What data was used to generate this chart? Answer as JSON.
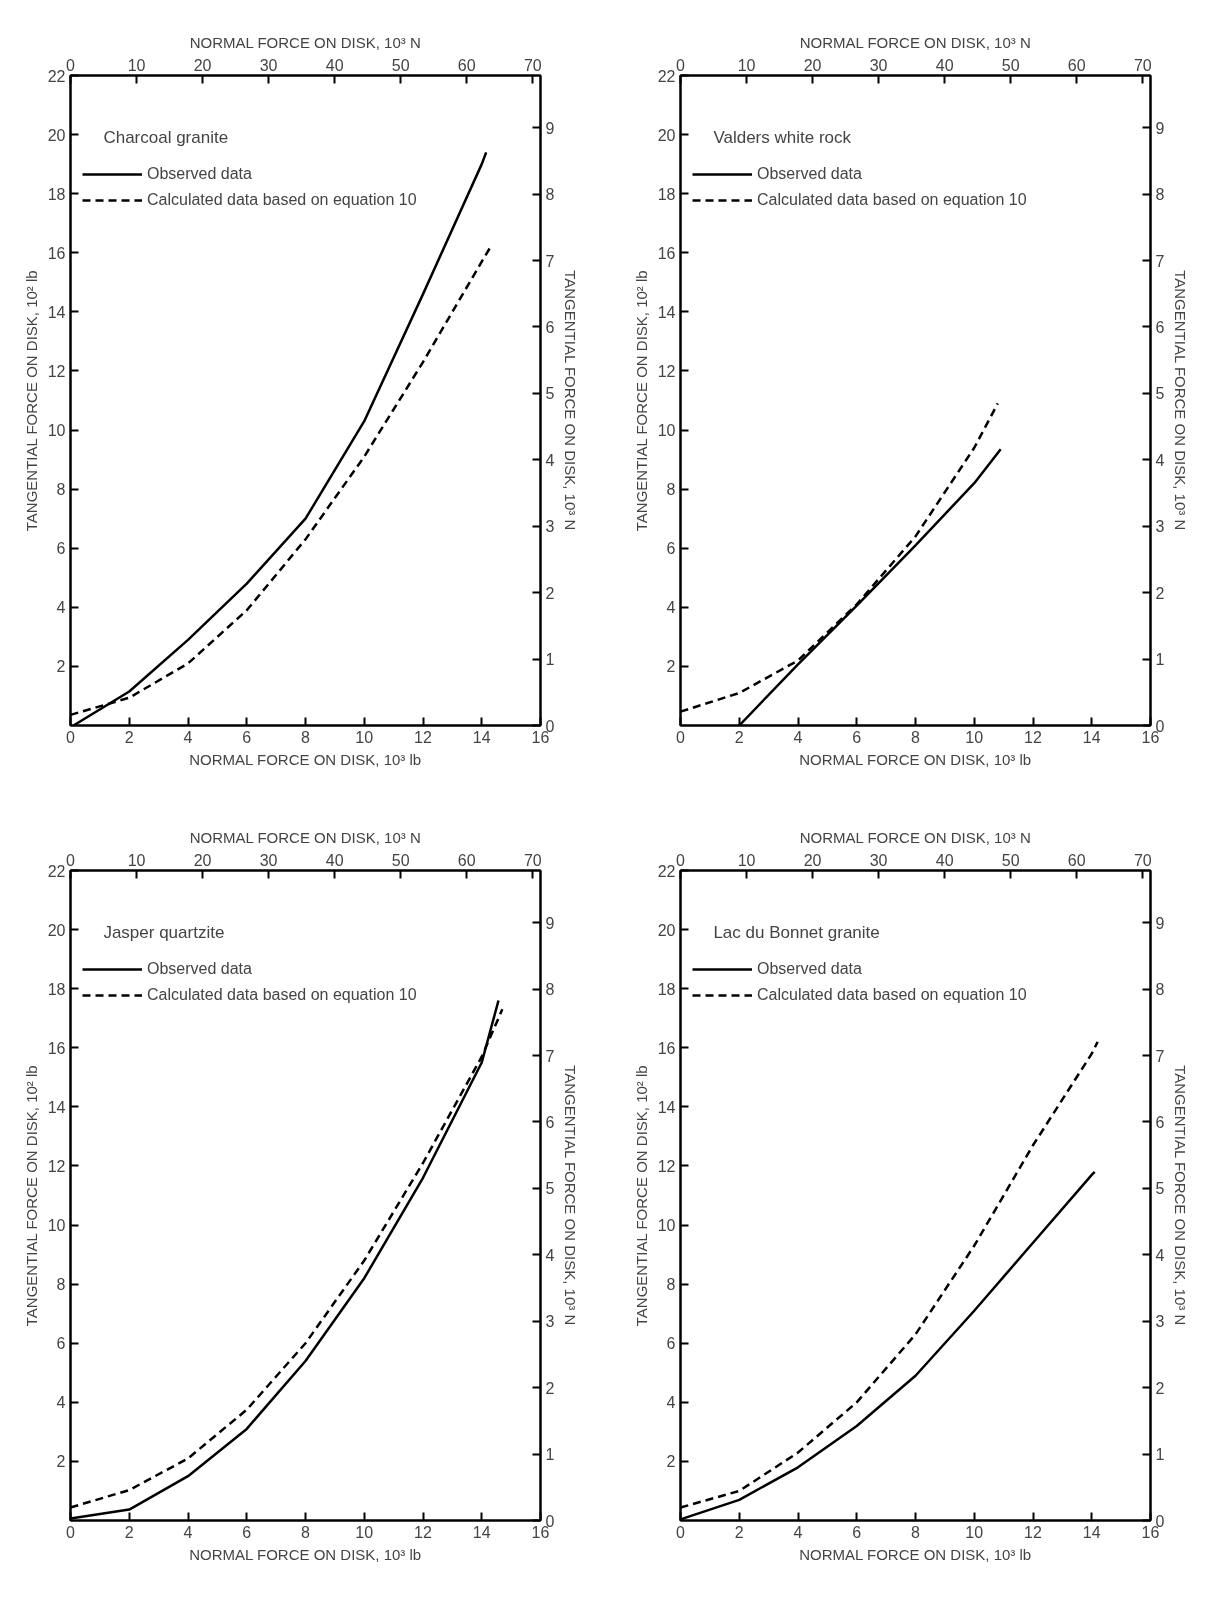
{
  "chart_data": [
    {
      "type": "line",
      "title": "Charcoal granite",
      "xlabel": "NORMAL FORCE ON DISK, 10³ lb",
      "x2label": "NORMAL FORCE ON DISK, 10³ N",
      "ylabel": "TANGENTIAL FORCE ON DISK, 10² lb",
      "y2label": "TANGENTIAL FORCE ON DISK, 10³ N",
      "xlim": [
        0,
        16
      ],
      "xticks": [
        0,
        2,
        4,
        6,
        8,
        10,
        12,
        14,
        16
      ],
      "x2lim": [
        0,
        71.17
      ],
      "x2ticks": [
        0,
        10,
        20,
        30,
        40,
        50,
        60,
        70
      ],
      "ylim": [
        0,
        22
      ],
      "yticks": [
        2,
        4,
        6,
        8,
        10,
        12,
        14,
        16,
        18,
        20,
        22
      ],
      "y2lim": [
        0,
        9.786
      ],
      "y2ticks": [
        0,
        1,
        2,
        3,
        4,
        5,
        6,
        7,
        8,
        9
      ],
      "legend": "top left",
      "series": [
        {
          "name": "Observed data",
          "color": "#000000",
          "line_style": "solid",
          "x": [
            0.1,
            2,
            4,
            6,
            8,
            10,
            12,
            14,
            14.15
          ],
          "values": [
            0,
            1.15,
            2.9,
            4.8,
            7.0,
            10.3,
            14.6,
            19.0,
            19.4
          ]
        },
        {
          "name": "Calculated data based on equation 10",
          "color": "#000000",
          "line_style": "dashed",
          "x": [
            0,
            2,
            4,
            6,
            8,
            10,
            12,
            14,
            14.3
          ],
          "values": [
            0.36,
            0.94,
            2.1,
            3.9,
            6.3,
            9.1,
            12.3,
            15.7,
            16.2
          ]
        }
      ]
    },
    {
      "type": "line",
      "title": "Valders white rock",
      "xlabel": "NORMAL FORCE ON DISK, 10³ lb",
      "x2label": "NORMAL FORCE ON DISK, 10³ N",
      "ylabel": "TANGENTIAL FORCE ON DISK, 10² lb",
      "y2label": "TANGENTIAL FORCE ON DISK, 10³ N",
      "xlim": [
        0,
        16
      ],
      "xticks": [
        0,
        2,
        4,
        6,
        8,
        10,
        12,
        14,
        16
      ],
      "x2lim": [
        0,
        71.17
      ],
      "x2ticks": [
        0,
        10,
        20,
        30,
        40,
        50,
        60,
        70
      ],
      "ylim": [
        0,
        22
      ],
      "yticks": [
        2,
        4,
        6,
        8,
        10,
        12,
        14,
        16,
        18,
        20,
        22
      ],
      "y2lim": [
        0,
        9.786
      ],
      "y2ticks": [
        0,
        1,
        2,
        3,
        4,
        5,
        6,
        7,
        8,
        9
      ],
      "legend": "top left",
      "series": [
        {
          "name": "Observed data",
          "color": "#000000",
          "line_style": "solid",
          "x": [
            2.0,
            4,
            6,
            8,
            10,
            10.9
          ],
          "values": [
            0,
            2.07,
            4.06,
            6.1,
            8.2,
            9.35
          ]
        },
        {
          "name": "Calculated data based on equation 10",
          "color": "#000000",
          "line_style": "dashed",
          "x": [
            0,
            2,
            4,
            6,
            8,
            10,
            10.8
          ],
          "values": [
            0.47,
            1.1,
            2.2,
            4.1,
            6.4,
            9.4,
            10.9
          ]
        }
      ]
    },
    {
      "type": "line",
      "title": "Jasper quartzite",
      "xlabel": "NORMAL FORCE ON DISK, 10³ lb",
      "x2label": "NORMAL FORCE ON DISK, 10³ N",
      "ylabel": "TANGENTIAL FORCE ON DISK, 10² lb",
      "y2label": "TANGENTIAL FORCE ON DISK, 10³ N",
      "xlim": [
        0,
        16
      ],
      "xticks": [
        0,
        2,
        4,
        6,
        8,
        10,
        12,
        14,
        16
      ],
      "x2lim": [
        0,
        71.17
      ],
      "x2ticks": [
        0,
        10,
        20,
        30,
        40,
        50,
        60,
        70
      ],
      "ylim": [
        0,
        22
      ],
      "yticks": [
        2,
        4,
        6,
        8,
        10,
        12,
        14,
        16,
        18,
        20,
        22
      ],
      "y2lim": [
        0,
        9.786
      ],
      "y2ticks": [
        0,
        1,
        2,
        3,
        4,
        5,
        6,
        7,
        8,
        9
      ],
      "legend": "top left",
      "series": [
        {
          "name": "Observed data",
          "color": "#000000",
          "line_style": "solid",
          "x": [
            0,
            2,
            4,
            6,
            8,
            10,
            12,
            14,
            14.57
          ],
          "values": [
            0.07,
            0.37,
            1.5,
            3.1,
            5.4,
            8.2,
            11.6,
            15.5,
            17.6
          ]
        },
        {
          "name": "Calculated data based on equation 10",
          "color": "#000000",
          "line_style": "dashed",
          "x": [
            0,
            2,
            4,
            6,
            8,
            10,
            12,
            14,
            14.7
          ],
          "values": [
            0.44,
            1.03,
            2.1,
            3.75,
            6.0,
            8.8,
            12.1,
            15.7,
            17.3
          ]
        }
      ]
    },
    {
      "type": "line",
      "title": "Lac du Bonnet granite",
      "xlabel": "NORMAL FORCE ON DISK, 10³ lb",
      "x2label": "NORMAL FORCE ON DISK, 10³ N",
      "ylabel": "TANGENTIAL FORCE ON DISK, 10² lb",
      "y2label": "TANGENTIAL FORCE ON DISK, 10³ N",
      "xlim": [
        0,
        16
      ],
      "xticks": [
        0,
        2,
        4,
        6,
        8,
        10,
        12,
        14,
        16
      ],
      "x2lim": [
        0,
        71.17
      ],
      "x2ticks": [
        0,
        10,
        20,
        30,
        40,
        50,
        60,
        70
      ],
      "ylim": [
        0,
        22
      ],
      "yticks": [
        2,
        4,
        6,
        8,
        10,
        12,
        14,
        16,
        18,
        20,
        22
      ],
      "y2lim": [
        0,
        9.786
      ],
      "y2ticks": [
        0,
        1,
        2,
        3,
        4,
        5,
        6,
        7,
        8,
        9
      ],
      "legend": "top left",
      "series": [
        {
          "name": "Observed data",
          "color": "#000000",
          "line_style": "solid",
          "x": [
            0,
            2,
            4,
            6,
            8,
            10,
            12,
            14,
            14.1
          ],
          "values": [
            0.04,
            0.7,
            1.8,
            3.2,
            4.9,
            7.1,
            9.4,
            11.7,
            11.8
          ]
        },
        {
          "name": "Calculated data based on equation 10",
          "color": "#000000",
          "line_style": "dashed",
          "x": [
            0,
            2,
            4,
            6,
            8,
            10,
            12,
            14,
            14.2
          ],
          "values": [
            0.44,
            1.0,
            2.3,
            4.0,
            6.3,
            9.3,
            12.7,
            15.8,
            16.2
          ]
        }
      ]
    }
  ]
}
